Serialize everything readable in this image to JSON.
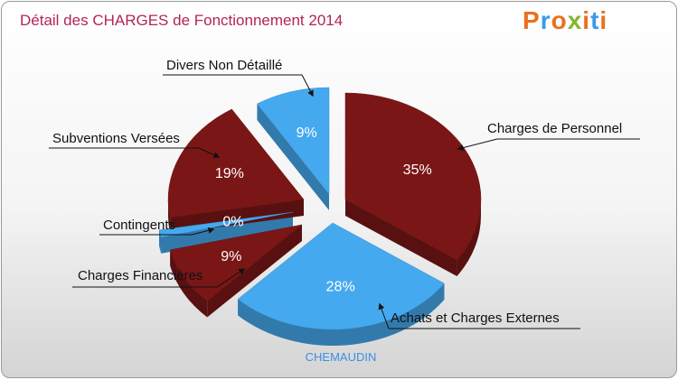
{
  "title": "Détail des CHARGES de Fonctionnement 2014",
  "logo": {
    "letters": [
      "P",
      "r",
      "o",
      "x",
      "i",
      "t",
      "i"
    ],
    "colors": [
      "#e8711d",
      "#3c9ae8",
      "#e8711d",
      "#82b62a",
      "#e8711d",
      "#3c9ae8",
      "#e8711d"
    ]
  },
  "subtitle": "CHEMAUDIN",
  "chart_data": {
    "type": "pie",
    "title": "Détail des CHARGES de Fonctionnement 2014",
    "slices": [
      {
        "label": "Charges de Personnel",
        "value": 35,
        "value_label": "35%",
        "color": "#7b1616"
      },
      {
        "label": "Achats et Charges Externes",
        "value": 28,
        "value_label": "28%",
        "color": "#45a9ef"
      },
      {
        "label": "Charges Financières",
        "value": 9,
        "value_label": "9%",
        "color": "#7b1616"
      },
      {
        "label": "Contingents",
        "value": 0,
        "value_label": "0%",
        "color": "#45a9ef"
      },
      {
        "label": "Subventions Versées",
        "value": 19,
        "value_label": "19%",
        "color": "#7b1616"
      },
      {
        "label": "Divers Non Détaillé",
        "value": 9,
        "value_label": "9%",
        "color": "#45a9ef"
      }
    ]
  }
}
